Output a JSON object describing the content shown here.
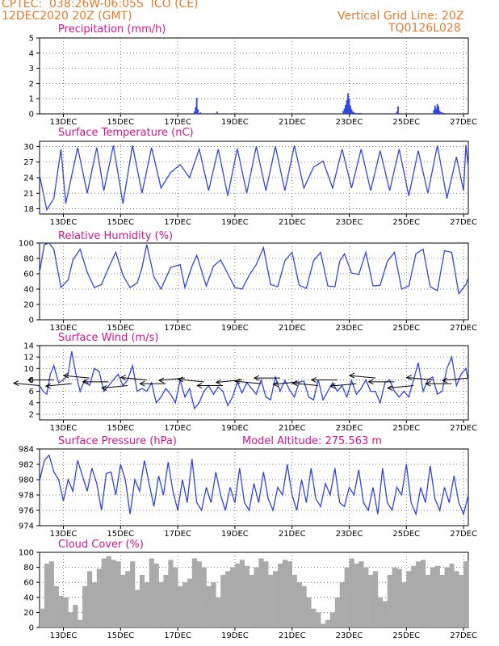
{
  "header": {
    "line1_left": "CPTEC:  038:26W-06:05S  ICO (CE)",
    "line2_left": "12DEC2020 20Z (GMT)",
    "line1_right": "Vertical Grid Line: 20Z",
    "line2_right": "TQ0126L028"
  },
  "model_altitude": "Model Altitude: 275.563 m",
  "colors": {
    "header": "#e8782a",
    "title": "#d4148c",
    "line": "#3045e0",
    "cloud": "#aaaaaa"
  },
  "chart_data": [
    {
      "type": "bar",
      "title": "Precipitation (mm/h)",
      "x_tick_labels": [
        "13DEC",
        "15DEC",
        "17DEC",
        "19DEC",
        "21DEC",
        "23DEC",
        "25DEC",
        "27DEC"
      ],
      "ylim": [
        0,
        5
      ],
      "yticks": [
        0,
        1,
        2,
        3,
        4,
        5
      ],
      "grid": true,
      "series": [
        {
          "x_hours": [
            130,
            131,
            132,
            133,
            135,
            149,
            255,
            256,
            257,
            258,
            259,
            260,
            261,
            262,
            263,
            264,
            265,
            266,
            267,
            268,
            269,
            270,
            300,
            301,
            331,
            332,
            333,
            334,
            335,
            336,
            337,
            338,
            339,
            340
          ],
          "values": [
            0.15,
            0.45,
            1.05,
            0.3,
            0.1,
            0.15,
            0.2,
            0.35,
            0.6,
            0.9,
            1.35,
            1.0,
            0.55,
            0.3,
            0.15,
            0.1,
            0.05,
            0.05,
            0.05,
            0.05,
            0.05,
            0.05,
            0.15,
            0.5,
            0.25,
            0.55,
            0.35,
            0.65,
            0.5,
            0.2,
            0.1,
            0.1,
            0.05,
            0.05
          ]
        }
      ]
    },
    {
      "type": "line",
      "title": "Surface Temperature (nC)",
      "x_tick_labels": [
        "13DEC",
        "15DEC",
        "17DEC",
        "19DEC",
        "21DEC",
        "23DEC",
        "25DEC",
        "27DEC"
      ],
      "ylim": [
        17,
        31
      ],
      "yticks": [
        18,
        21,
        24,
        27,
        30
      ],
      "grid": true,
      "series": [
        {
          "x_hours": [
            0,
            6,
            12,
            18,
            22,
            32,
            40,
            48,
            54,
            62,
            70,
            78,
            86,
            94,
            102,
            110,
            118,
            126,
            134,
            142,
            150,
            158,
            166,
            174,
            182,
            190,
            198,
            206,
            214,
            222,
            230,
            238,
            246,
            254,
            262,
            270,
            278,
            286,
            294,
            302,
            310,
            318,
            326,
            334,
            342,
            350,
            356,
            358,
            360
          ],
          "values": [
            24.5,
            17.8,
            20,
            29.5,
            19,
            29.8,
            21,
            29.8,
            21.5,
            30.2,
            19,
            30.2,
            21,
            29.8,
            22,
            25,
            26.5,
            24,
            29.5,
            21.5,
            29.5,
            20.5,
            29.6,
            21,
            30,
            21.5,
            30,
            21.5,
            30.2,
            22,
            26,
            27.2,
            22,
            29.5,
            22,
            29.5,
            21.5,
            29.2,
            21.5,
            29.5,
            20.5,
            29.2,
            21,
            30.2,
            20,
            28,
            21.5,
            30.3,
            26
          ]
        }
      ]
    },
    {
      "type": "line",
      "title": "Relative Humidity (%)",
      "x_tick_labels": [
        "13DEC",
        "15DEC",
        "17DEC",
        "19DEC",
        "21DEC",
        "23DEC",
        "25DEC",
        "27DEC"
      ],
      "ylim": [
        0,
        100
      ],
      "yticks": [
        0,
        20,
        40,
        60,
        80,
        100
      ],
      "grid": true,
      "series": [
        {
          "x_hours": [
            0,
            4,
            8,
            12,
            18,
            24,
            28,
            34,
            40,
            46,
            52,
            58,
            64,
            70,
            76,
            82,
            86,
            90,
            96,
            102,
            106,
            110,
            118,
            122,
            128,
            132,
            140,
            146,
            152,
            158,
            164,
            170,
            176,
            182,
            188,
            194,
            200,
            206,
            212,
            218,
            224,
            230,
            236,
            242,
            248,
            252,
            256,
            262,
            268,
            274,
            280,
            286,
            292,
            298,
            304,
            310,
            316,
            322,
            328,
            334,
            340,
            346,
            352,
            358,
            360
          ],
          "values": [
            62,
            98,
            100,
            92,
            42,
            52,
            78,
            92,
            62,
            42,
            46,
            68,
            88,
            58,
            42,
            48,
            68,
            98,
            56,
            40,
            54,
            68,
            72,
            42,
            70,
            84,
            44,
            70,
            78,
            60,
            42,
            40,
            58,
            72,
            94,
            46,
            43,
            77,
            88,
            45,
            41,
            77,
            88,
            44,
            43,
            76,
            86,
            61,
            59,
            88,
            44,
            45,
            76,
            88,
            40,
            44,
            86,
            92,
            43,
            38,
            90,
            88,
            34,
            46,
            55
          ]
        }
      ]
    },
    {
      "type": "line",
      "title": "Surface Wind (m/s)",
      "x_tick_labels": [
        "13DEC",
        "15DEC",
        "17DEC",
        "19DEC",
        "21DEC",
        "23DEC",
        "25DEC",
        "27DEC"
      ],
      "ylim": [
        1,
        14
      ],
      "yticks": [
        2,
        4,
        6,
        8,
        10,
        12,
        14
      ],
      "grid": true,
      "series": [
        {
          "x_hours": [
            0,
            3,
            6,
            9,
            12,
            16,
            20,
            24,
            27,
            30,
            34,
            38,
            42,
            46,
            50,
            54,
            58,
            62,
            66,
            70,
            74,
            78,
            82,
            86,
            90,
            94,
            98,
            102,
            106,
            110,
            114,
            118,
            122,
            126,
            130,
            134,
            138,
            142,
            146,
            150,
            154,
            158,
            162,
            166,
            170,
            174,
            178,
            182,
            186,
            190,
            194,
            198,
            202,
            206,
            210,
            214,
            218,
            222,
            226,
            230,
            234,
            238,
            242,
            246,
            250,
            254,
            258,
            262,
            266,
            270,
            274,
            278,
            282,
            286,
            290,
            294,
            298,
            302,
            306,
            310,
            314,
            318,
            322,
            326,
            330,
            334,
            338,
            342,
            346,
            350,
            354,
            358,
            360
          ],
          "values": [
            7,
            6,
            5.5,
            9,
            10.5,
            7.5,
            8,
            9,
            13,
            9.5,
            6,
            8,
            7,
            10,
            9.5,
            6,
            7,
            8,
            9,
            7,
            8,
            10.5,
            6,
            6.5,
            6,
            7.5,
            4,
            5,
            6.5,
            5.5,
            4,
            8,
            5,
            6.5,
            3,
            4,
            6,
            7,
            5.5,
            6.8,
            6,
            3.5,
            5,
            7.6,
            5.7,
            7.5,
            6.5,
            5.5,
            8,
            5,
            4.5,
            8.5,
            6,
            7.9,
            6.2,
            5,
            7.6,
            7.8,
            5,
            4.5,
            8,
            4.5,
            6,
            7.5,
            6,
            7,
            5,
            7.9,
            5.5,
            6.5,
            8,
            6,
            6,
            4,
            7.5,
            8,
            6,
            5,
            6,
            5,
            8,
            11,
            6,
            8,
            8.5,
            5.5,
            6,
            10,
            12,
            7,
            9,
            10,
            8
          ]
        }
      ],
      "vectors": "wind direction arrows (mostly from the east)"
    },
    {
      "type": "line",
      "title": "Surface Pressure (hPa)",
      "x_tick_labels": [
        "13DEC",
        "15DEC",
        "17DEC",
        "19DEC",
        "21DEC",
        "23DEC",
        "25DEC",
        "27DEC"
      ],
      "ylim": [
        974,
        984
      ],
      "yticks": [
        974,
        976,
        978,
        980,
        982,
        984
      ],
      "grid": true,
      "series": [
        {
          "x_hours": [
            0,
            4,
            8,
            12,
            16,
            20,
            24,
            28,
            32,
            36,
            40,
            44,
            48,
            52,
            56,
            60,
            64,
            68,
            72,
            76,
            80,
            84,
            88,
            92,
            96,
            100,
            104,
            108,
            112,
            116,
            120,
            124,
            128,
            132,
            136,
            140,
            144,
            148,
            152,
            156,
            160,
            164,
            168,
            172,
            176,
            180,
            184,
            188,
            192,
            196,
            200,
            204,
            208,
            212,
            216,
            220,
            224,
            228,
            232,
            236,
            240,
            244,
            248,
            252,
            256,
            260,
            264,
            268,
            272,
            276,
            280,
            284,
            288,
            292,
            296,
            300,
            304,
            308,
            312,
            316,
            320,
            324,
            328,
            332,
            336,
            340,
            344,
            348,
            352,
            356,
            360
          ],
          "values": [
            979.8,
            982.5,
            983.2,
            981,
            980,
            977.2,
            980,
            978.5,
            982.5,
            980.5,
            978.5,
            981.5,
            979.5,
            976,
            980.8,
            981,
            978,
            982,
            980,
            975.5,
            980,
            978.5,
            982.5,
            979.5,
            976.5,
            980.5,
            978,
            982.3,
            978.5,
            976,
            980,
            977,
            982.7,
            977,
            976,
            979,
            977,
            981,
            978,
            976,
            979,
            977,
            981.5,
            977,
            976,
            979.5,
            977,
            981,
            977.5,
            976,
            979,
            978,
            982,
            978,
            976,
            980,
            977,
            981.5,
            977.5,
            976.5,
            979.5,
            978,
            981.5,
            977,
            976.5,
            979,
            978,
            981.3,
            977,
            976,
            979,
            975.5,
            981.5,
            977,
            976,
            979,
            978,
            982,
            977,
            975.5,
            979,
            977,
            981.8,
            977.5,
            976,
            979,
            977,
            980.5,
            977,
            975.5,
            978
          ]
        }
      ]
    },
    {
      "type": "area",
      "title": "Cloud Cover (%)",
      "x_tick_labels": [
        "13DEC",
        "15DEC",
        "17DEC",
        "19DEC",
        "21DEC",
        "23DEC",
        "25DEC",
        "27DEC"
      ],
      "ylim": [
        0,
        100
      ],
      "yticks": [
        0,
        20,
        40,
        60,
        80,
        100
      ],
      "grid": true,
      "series": [
        {
          "x_hours": [
            0,
            4,
            8,
            12,
            16,
            20,
            24,
            28,
            32,
            36,
            40,
            44,
            48,
            52,
            56,
            60,
            64,
            68,
            72,
            76,
            80,
            84,
            88,
            92,
            96,
            100,
            104,
            108,
            112,
            116,
            120,
            124,
            128,
            132,
            136,
            140,
            144,
            148,
            152,
            156,
            160,
            164,
            168,
            172,
            176,
            180,
            184,
            188,
            192,
            196,
            200,
            204,
            208,
            212,
            216,
            220,
            224,
            228,
            232,
            236,
            240,
            244,
            248,
            252,
            256,
            260,
            264,
            268,
            272,
            276,
            280,
            284,
            288,
            292,
            296,
            300,
            304,
            308,
            312,
            316,
            320,
            324,
            328,
            332,
            336,
            340,
            344,
            348,
            352,
            356,
            360
          ],
          "values": [
            25,
            85,
            88,
            55,
            42,
            40,
            20,
            30,
            10,
            55,
            75,
            60,
            78,
            92,
            95,
            90,
            88,
            70,
            75,
            88,
            50,
            70,
            60,
            92,
            85,
            60,
            70,
            90,
            80,
            55,
            60,
            65,
            92,
            88,
            80,
            55,
            60,
            40,
            70,
            75,
            80,
            85,
            90,
            82,
            70,
            80,
            92,
            88,
            70,
            75,
            85,
            90,
            88,
            70,
            60,
            55,
            40,
            25,
            20,
            5,
            10,
            20,
            40,
            60,
            80,
            92,
            85,
            88,
            80,
            70,
            75,
            40,
            35,
            70,
            80,
            78,
            60,
            75,
            82,
            88,
            90,
            70,
            80,
            82,
            70,
            80,
            85,
            75,
            70,
            88,
            95
          ]
        }
      ]
    }
  ]
}
